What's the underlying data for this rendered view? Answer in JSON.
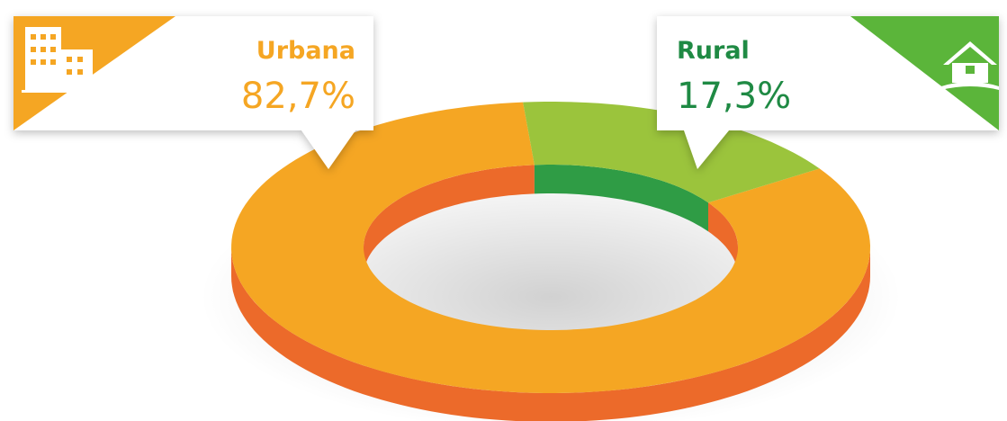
{
  "chart_data": {
    "type": "donut",
    "categories": [
      "Urbana",
      "Rural"
    ],
    "values": [
      82.7,
      17.3
    ],
    "value_labels": [
      "82,7%",
      "17,3%"
    ],
    "colors": [
      "#f5a623",
      "#9bc43c"
    ],
    "side_colors": [
      "#ec6a2a",
      "#2f9c45"
    ]
  }
}
